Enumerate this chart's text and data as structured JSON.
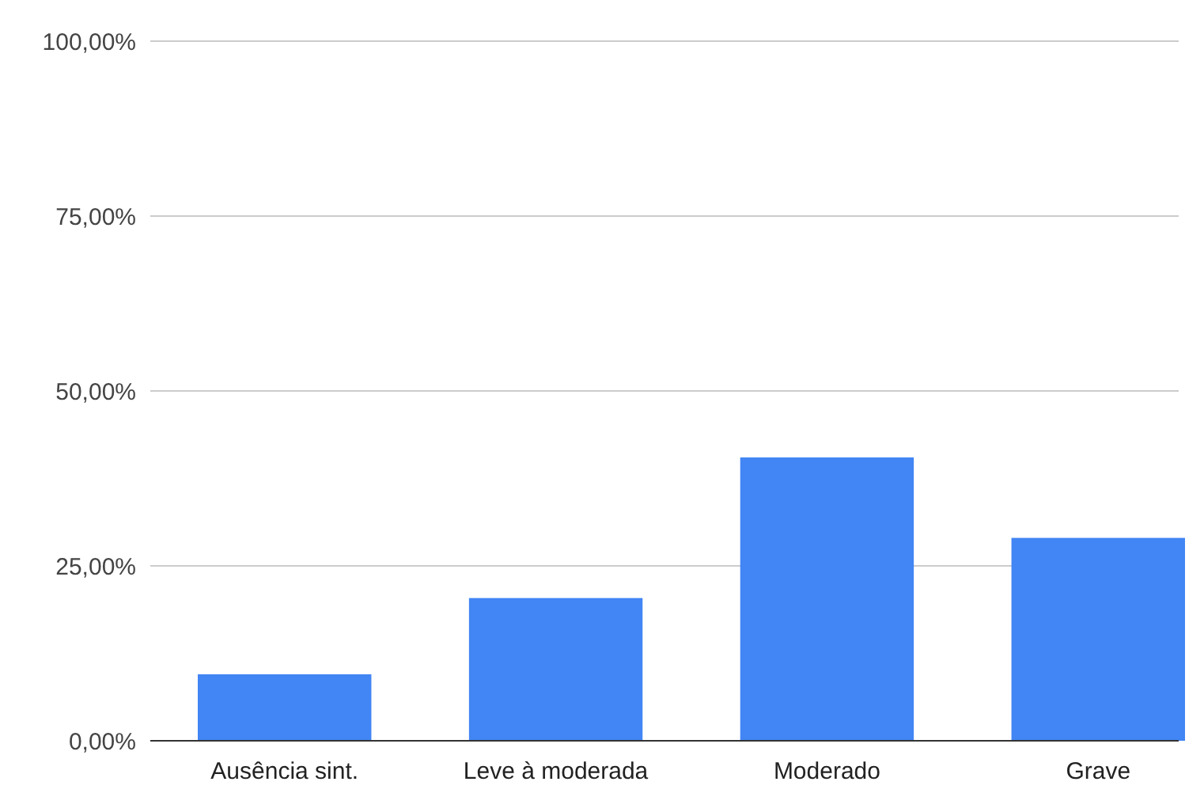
{
  "chart_data": {
    "type": "bar",
    "categories": [
      "Ausência sint.",
      "Leve à moderada",
      "Moderado",
      "Grave"
    ],
    "values": [
      9.5,
      20.4,
      40.5,
      29
    ],
    "color": "#4285f4",
    "ylim": [
      0,
      100
    ],
    "yticks": [
      {
        "value": 0,
        "label": "0,00%"
      },
      {
        "value": 25,
        "label": "25,00%"
      },
      {
        "value": 50,
        "label": "50,00%"
      },
      {
        "value": 75,
        "label": "75,00%"
      },
      {
        "value": 100,
        "label": "100,00%"
      }
    ],
    "grid": "y"
  }
}
